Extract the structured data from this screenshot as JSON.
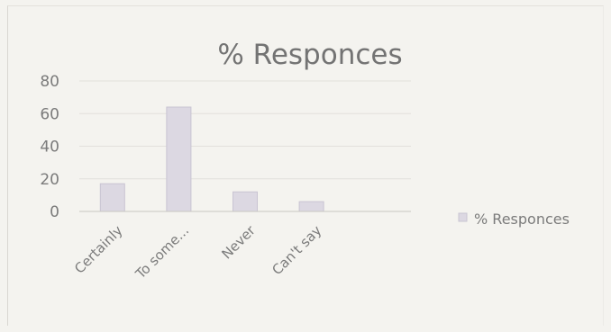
{
  "chart_data": {
    "type": "bar",
    "title": "% Responces",
    "categories": [
      "Certainly",
      "To some...",
      "Never",
      "Can't say"
    ],
    "series": [
      {
        "name": "% Responces",
        "values": [
          17,
          64,
          12,
          6
        ]
      }
    ],
    "yticks": [
      "0",
      "20",
      "40",
      "60",
      "80"
    ],
    "ylim": [
      0,
      80
    ],
    "grid": true,
    "legend": "right",
    "colors": {
      "bar": "#dcd8e2",
      "bar_border": "#c9c4d2"
    }
  }
}
